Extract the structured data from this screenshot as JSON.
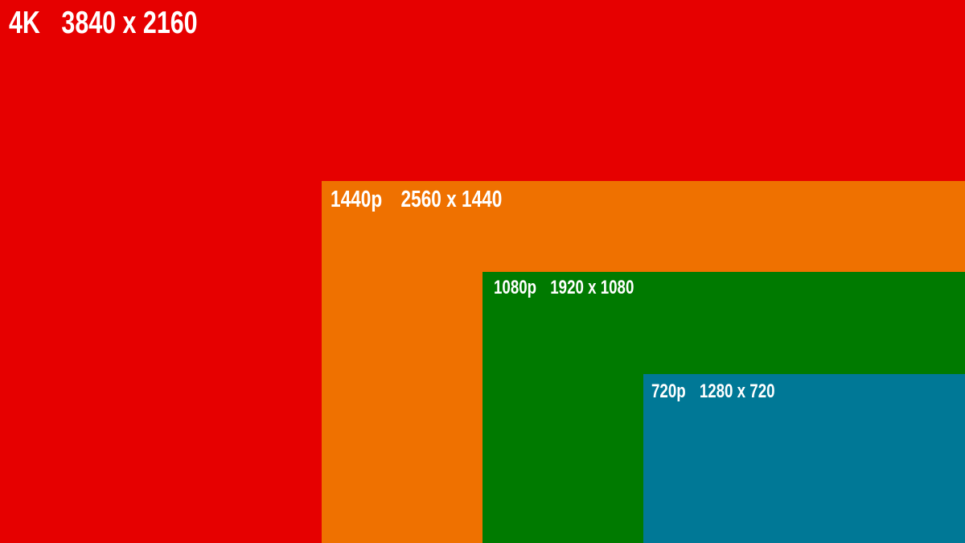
{
  "resolutions": [
    {
      "name": "4K",
      "dimensions": "3840 x 2160",
      "color": "#e60000"
    },
    {
      "name": "1440p",
      "dimensions": "2560 x 1440",
      "color": "#ef7100"
    },
    {
      "name": "1080p",
      "dimensions": "1920 x 1080",
      "color": "#007a00"
    },
    {
      "name": "720p",
      "dimensions": "1280 x 720",
      "color": "#007896"
    }
  ]
}
